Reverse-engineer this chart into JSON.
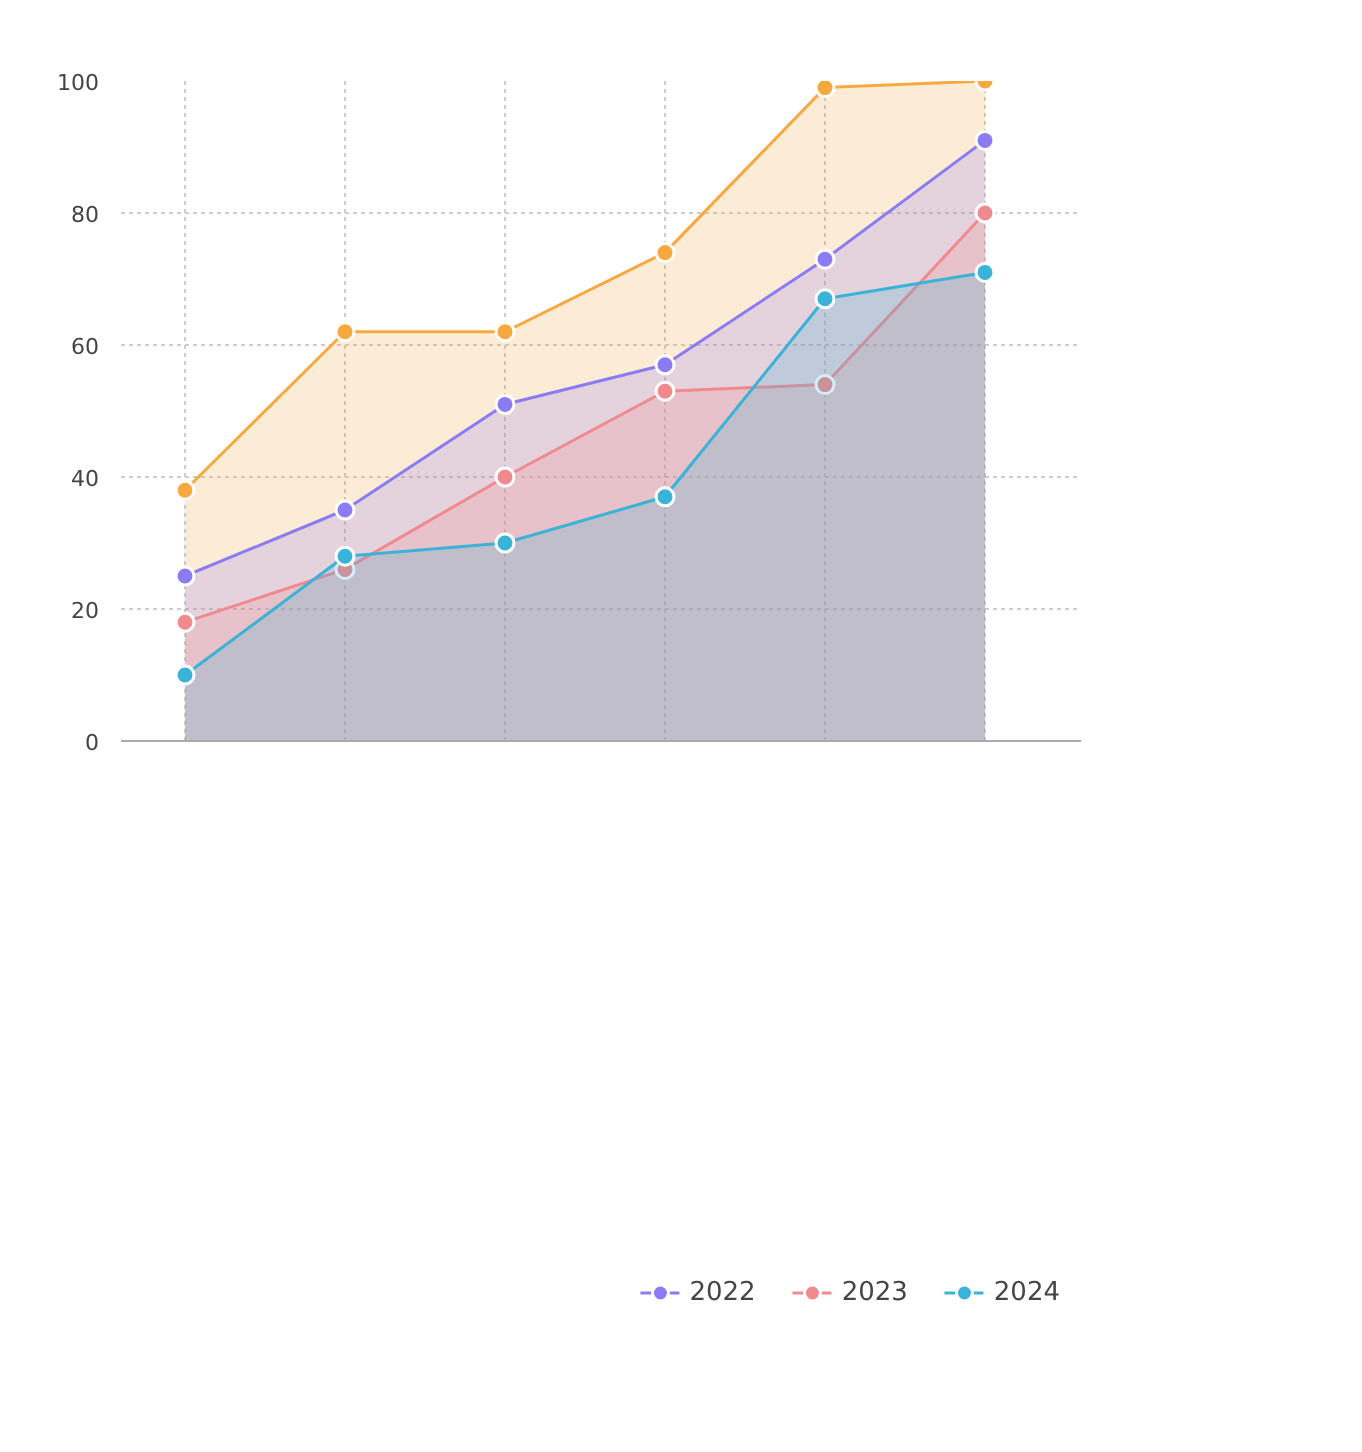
{
  "chart_data": {
    "type": "area",
    "categories": [
      null,
      null,
      null,
      null,
      null,
      null
    ],
    "series": [
      {
        "color": "#f7a940",
        "values": [
          38,
          62,
          62,
          74,
          99,
          100
        ]
      },
      {
        "name": "2022",
        "color": "#8b7cf6",
        "values": [
          25,
          35,
          51,
          57,
          73,
          91
        ]
      },
      {
        "name": "2023",
        "color": "#f08a8f",
        "values": [
          18,
          26,
          40,
          53,
          54,
          80
        ]
      },
      {
        "name": "2024",
        "color": "#3ab3d8",
        "values": [
          10,
          28,
          30,
          37,
          67,
          71
        ]
      }
    ],
    "ylim": [
      0,
      100
    ],
    "yticks": [
      0,
      20,
      40,
      60,
      80,
      100
    ],
    "grid": true,
    "legend": "bottom",
    "marker": "circle",
    "line_style": "solid"
  }
}
